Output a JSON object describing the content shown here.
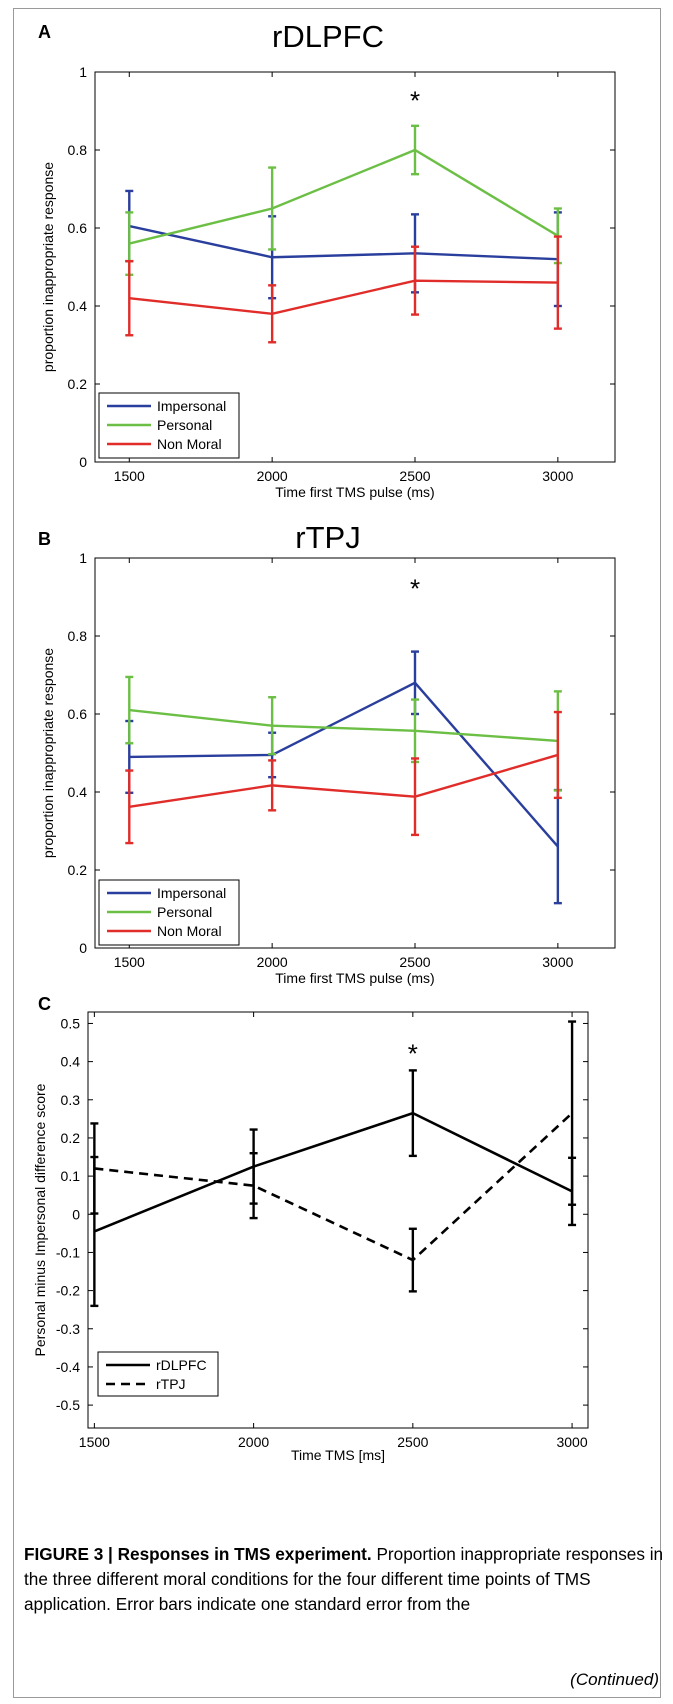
{
  "chart_data": [
    {
      "type": "line",
      "panel_letter": "A",
      "title": "rDLPFC",
      "xlabel": "Time first TMS pulse (ms)",
      "ylabel": "proportion inappropriate response",
      "x": [
        1500,
        2000,
        2500,
        3000
      ],
      "xlim": [
        1380,
        3200
      ],
      "ylim": [
        0,
        1
      ],
      "yticks": [
        0,
        0.2,
        0.4,
        0.6,
        0.8,
        1
      ],
      "ytick_labels": [
        "0",
        "0.2",
        "0.4",
        "0.6",
        "0.8",
        "1"
      ],
      "xtick_labels": [
        "1500",
        "2000",
        "2500",
        "3000"
      ],
      "annotation": {
        "text": "*",
        "x": 2500,
        "y": 0.94
      },
      "legend": "bottom-left",
      "series": [
        {
          "name": "Impersonal",
          "color": "#2a3f9d",
          "values": [
            0.605,
            0.525,
            0.535,
            0.52
          ],
          "err": [
            0.09,
            0.105,
            0.1,
            0.12
          ]
        },
        {
          "name": "Personal",
          "color": "#6cbf45",
          "values": [
            0.56,
            0.65,
            0.8,
            0.58
          ],
          "err": [
            0.08,
            0.105,
            0.062,
            0.07
          ]
        },
        {
          "name": "Non Moral",
          "color": "#e02d2a",
          "values": [
            0.42,
            0.38,
            0.465,
            0.46
          ],
          "err": [
            0.095,
            0.073,
            0.087,
            0.118
          ]
        }
      ]
    },
    {
      "type": "line",
      "panel_letter": "B",
      "title": "rTPJ",
      "xlabel": "Time first TMS pulse (ms)",
      "ylabel": "proportion inappropriate response",
      "x": [
        1500,
        2000,
        2500,
        3000
      ],
      "xlim": [
        1380,
        3200
      ],
      "ylim": [
        0,
        1
      ],
      "yticks": [
        0,
        0.2,
        0.4,
        0.6,
        0.8,
        1
      ],
      "ytick_labels": [
        "0",
        "0.2",
        "0.4",
        "0.6",
        "0.8",
        "1"
      ],
      "xtick_labels": [
        "1500",
        "2000",
        "2500",
        "3000"
      ],
      "annotation": {
        "text": "*",
        "x": 2500,
        "y": 0.935
      },
      "legend": "bottom-left",
      "series": [
        {
          "name": "Impersonal",
          "color": "#2a3f9d",
          "values": [
            0.49,
            0.495,
            0.68,
            0.26
          ],
          "err": [
            0.092,
            0.057,
            0.08,
            0.145
          ]
        },
        {
          "name": "Personal",
          "color": "#6cbf45",
          "values": [
            0.61,
            0.57,
            0.557,
            0.531
          ],
          "err": [
            0.085,
            0.073,
            0.08,
            0.127
          ]
        },
        {
          "name": "Non Moral",
          "color": "#e02d2a",
          "values": [
            0.362,
            0.417,
            0.388,
            0.495
          ],
          "err": [
            0.093,
            0.064,
            0.098,
            0.11
          ]
        }
      ]
    },
    {
      "type": "line",
      "panel_letter": "C",
      "title": "",
      "xlabel": "Time TMS [ms]",
      "ylabel": "Personal minus Impersonal difference score",
      "x": [
        1500,
        2000,
        2500,
        3000
      ],
      "xlim": [
        1480,
        3050
      ],
      "ylim": [
        -0.56,
        0.53
      ],
      "yticks": [
        -0.5,
        -0.4,
        -0.3,
        -0.2,
        -0.1,
        0,
        0.1,
        0.2,
        0.3,
        0.4,
        0.5
      ],
      "ytick_labels": [
        "-0.5",
        "-0.4",
        "-0.3",
        "-0.2",
        "-0.1",
        "0",
        "0.1",
        "0.2",
        "0.3",
        "0.4",
        "0.5"
      ],
      "xtick_labels": [
        "1500",
        "2000",
        "2500",
        "3000"
      ],
      "annotation": {
        "text": "*",
        "x": 2500,
        "y": 0.435
      },
      "legend": "bottom-left",
      "series": [
        {
          "name": "rDLPFC",
          "color": "#000000",
          "dash": "solid",
          "values": [
            -0.045,
            0.125,
            0.265,
            0.06
          ],
          "err": [
            0.195,
            0.097,
            0.112,
            0.088
          ]
        },
        {
          "name": "rTPJ",
          "color": "#000000",
          "dash": "dashed",
          "values": [
            0.12,
            0.075,
            -0.12,
            0.265
          ],
          "err": [
            0.118,
            0.085,
            0.082,
            0.24
          ]
        }
      ]
    }
  ],
  "caption": {
    "label": "FIGURE 3 | Responses in TMS experiment.",
    "text": " Proportion inappropriate responses in the three different moral conditions for the four different time points of TMS application. Error bars indicate one standard error from the",
    "continued": "(Continued)"
  }
}
